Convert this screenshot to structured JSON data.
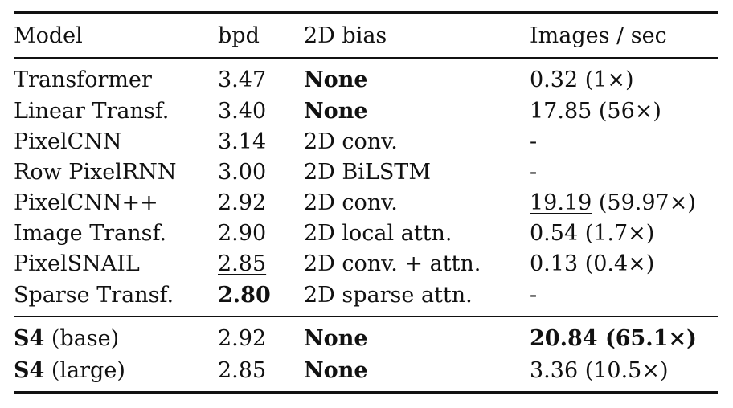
{
  "table": {
    "headers": {
      "model": "Model",
      "bpd": "bpd",
      "bias": "2D bias",
      "speed": "Images / sec"
    },
    "rows_a": [
      {
        "model": "Transformer",
        "bpd": "3.47",
        "bias": "None",
        "speed": "0.32 (1×)"
      },
      {
        "model": "Linear Transf.",
        "bpd": "3.40",
        "bias": "None",
        "speed": "17.85 (56×)"
      },
      {
        "model": "PixelCNN",
        "bpd": "3.14",
        "bias": "2D conv.",
        "speed": "-"
      },
      {
        "model": "Row PixelRNN",
        "bpd": "3.00",
        "bias": "2D BiLSTM",
        "speed": "-"
      },
      {
        "model": "PixelCNN++",
        "bpd": "2.92",
        "bias": "2D conv.",
        "speed_value": "19.19",
        "speed_ratio": " (59.97×)"
      },
      {
        "model": "Image Transf.",
        "bpd": "2.90",
        "bias": "2D local attn.",
        "speed": "0.54 (1.7×)"
      },
      {
        "model": "PixelSNAIL",
        "bpd": "2.85",
        "bias": "2D conv. + attn.",
        "speed": "0.13 (0.4×)"
      },
      {
        "model": "Sparse Transf.",
        "bpd": "2.80",
        "bias": "2D sparse attn.",
        "speed": "-"
      }
    ],
    "rows_b": [
      {
        "model_bold": "S4",
        "model_rest": " (base)",
        "bpd": "2.92",
        "bias": "None",
        "speed": "20.84 (65.1×)"
      },
      {
        "model_bold": "S4",
        "model_rest": " (large)",
        "bpd": "2.85",
        "bias": "None",
        "speed": "3.36 (10.5×)"
      }
    ]
  }
}
